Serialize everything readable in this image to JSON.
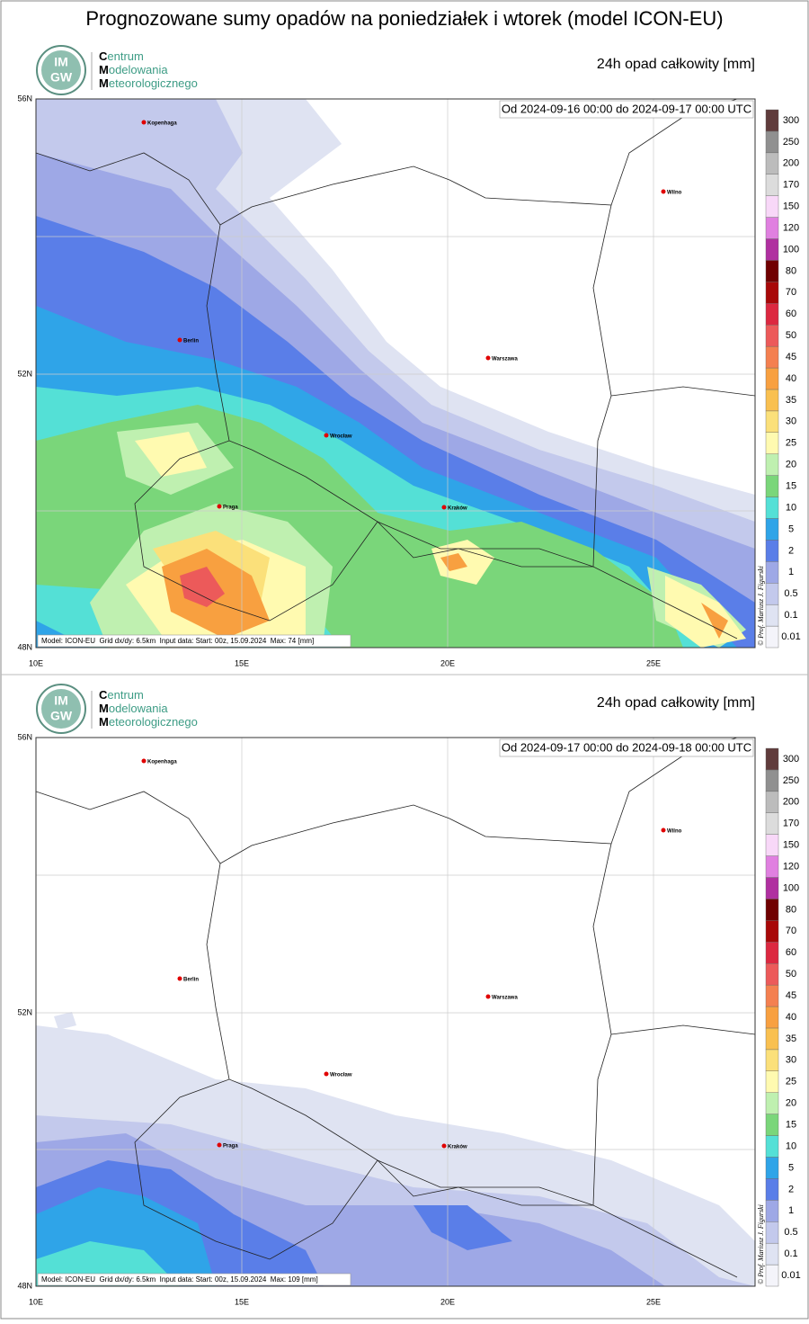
{
  "title": "Prognozowane sumy opadów na poniedziałek i wtorek (model ICON-EU)",
  "logo": {
    "mark_top": "IM",
    "mark_bottom": "GW",
    "name": [
      "Centrum",
      "Modelowania",
      "Meteorologicznego"
    ]
  },
  "panels": [
    {
      "variable": "24h opad całkowity [mm]",
      "period": "Od 2024-09-16 00:00 do 2024-09-17 00:00 UTC",
      "footer": "Model: ICON-EU  Grid dx/dy: 6.5km  Input data: Start: 00z, 15.09.2024  Max: 74 [mm]"
    },
    {
      "variable": "24h opad całkowity [mm]",
      "period": "Od 2024-09-17 00:00 do 2024-09-18 00:00 UTC",
      "footer": "Model: ICON-EU  Grid dx/dy: 6.5km  Input data: Start: 00z, 15.09.2024  Max: 109 [mm]"
    }
  ],
  "lat_labels": [
    "56N",
    "52N",
    "48N"
  ],
  "lon_labels": [
    "10E",
    "15E",
    "20E",
    "25E"
  ],
  "cities": [
    "Kopenhaga",
    "Berlin",
    "Warszawa",
    "Wilno",
    "Wrocław",
    "Praga",
    "Kraków"
  ],
  "legend": {
    "labels": [
      "0.01",
      "0.1",
      "0.5",
      "1",
      "2",
      "5",
      "10",
      "15",
      "20",
      "25",
      "30",
      "35",
      "40",
      "45",
      "50",
      "60",
      "70",
      "80",
      "100",
      "120",
      "150",
      "170",
      "200",
      "250",
      "300"
    ],
    "colors": [
      "#f4f4fa",
      "#dfe3f2",
      "#c3c9ec",
      "#9ea8e6",
      "#5a7ee8",
      "#2fa4e8",
      "#54e0d6",
      "#7ad67a",
      "#bff0b0",
      "#fffab0",
      "#fbe07a",
      "#f9c050",
      "#f8a040",
      "#f48050",
      "#ec5a5a",
      "#dc2840",
      "#a80808",
      "#700000",
      "#b030a0",
      "#e080e0",
      "#f8d8f8",
      "#dcdcdc",
      "#bcbcbc",
      "#909090",
      "#603c3c"
    ]
  },
  "credit": "© Prof. Mariusz J. Figurski"
}
